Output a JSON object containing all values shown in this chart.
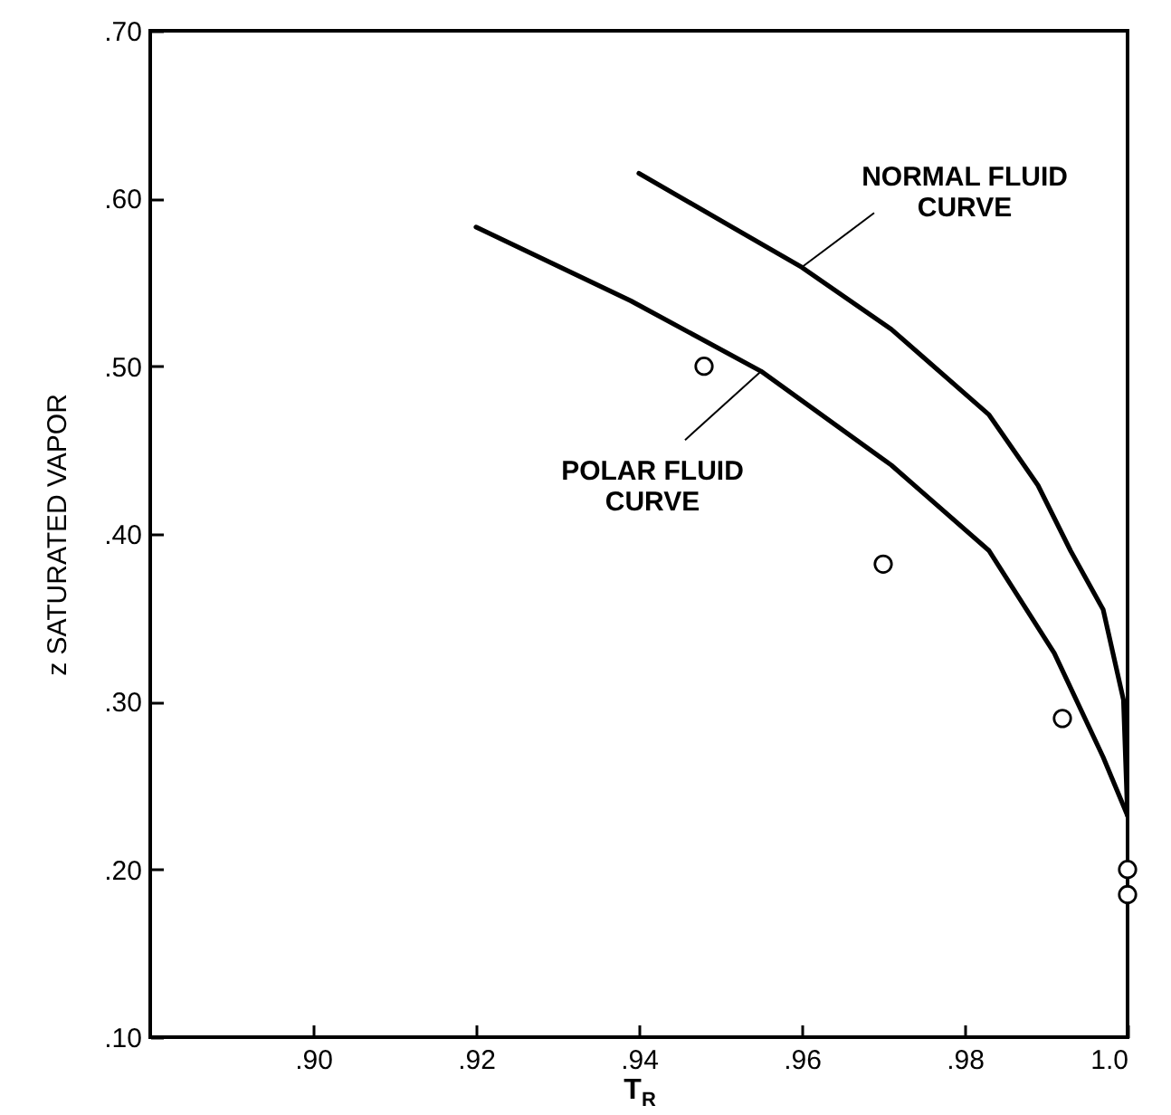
{
  "chart_data": {
    "type": "line",
    "xlabel": "T$_{R}$",
    "ylabel": "z SATURATED VAPOR",
    "xlim": [
      0.88,
      1.0
    ],
    "ylim": [
      0.1,
      0.7
    ],
    "xticks": [
      {
        "value": 0.9,
        "label": ".90"
      },
      {
        "value": 0.92,
        "label": ".92"
      },
      {
        "value": 0.94,
        "label": ".94"
      },
      {
        "value": 0.96,
        "label": ".96"
      },
      {
        "value": 0.98,
        "label": ".98"
      },
      {
        "value": 1.0,
        "label": "1.0"
      }
    ],
    "yticks": [
      {
        "value": 0.1,
        "label": ".10"
      },
      {
        "value": 0.2,
        "label": ".20"
      },
      {
        "value": 0.3,
        "label": ".30"
      },
      {
        "value": 0.4,
        "label": ".40"
      },
      {
        "value": 0.5,
        "label": ".50"
      },
      {
        "value": 0.6,
        "label": ".60"
      },
      {
        "value": 0.7,
        "label": ".70"
      }
    ],
    "series": [
      {
        "color": "#000000",
        "x": [
          0.94,
          0.96,
          0.971,
          0.983,
          0.989,
          0.993,
          0.997,
          0.9995,
          1.0
        ],
        "values": [
          0.615,
          0.559,
          0.522,
          0.471,
          0.429,
          0.39,
          0.355,
          0.301,
          0.232
        ]
      },
      {
        "color": "#000000",
        "x": [
          0.92,
          0.939,
          0.955,
          0.971,
          0.983,
          0.991,
          0.997,
          1.0
        ],
        "values": [
          0.583,
          0.539,
          0.497,
          0.441,
          0.39,
          0.329,
          0.267,
          0.232
        ]
      },
      {
        "type": "scatter",
        "color": "#000000",
        "marker": "circle",
        "x": [
          0.948,
          0.97,
          0.992,
          1.0,
          1.0
        ],
        "values": [
          0.5,
          0.382,
          0.29,
          0.2,
          0.185
        ]
      }
    ],
    "annotations": [
      {
        "text": "NORMAL FLUID\nCURVE",
        "x": 0.96,
        "y": 0.559
      },
      {
        "text": "POLAR FLUID\nCURVE",
        "x": 0.955,
        "y": 0.497
      }
    ]
  }
}
